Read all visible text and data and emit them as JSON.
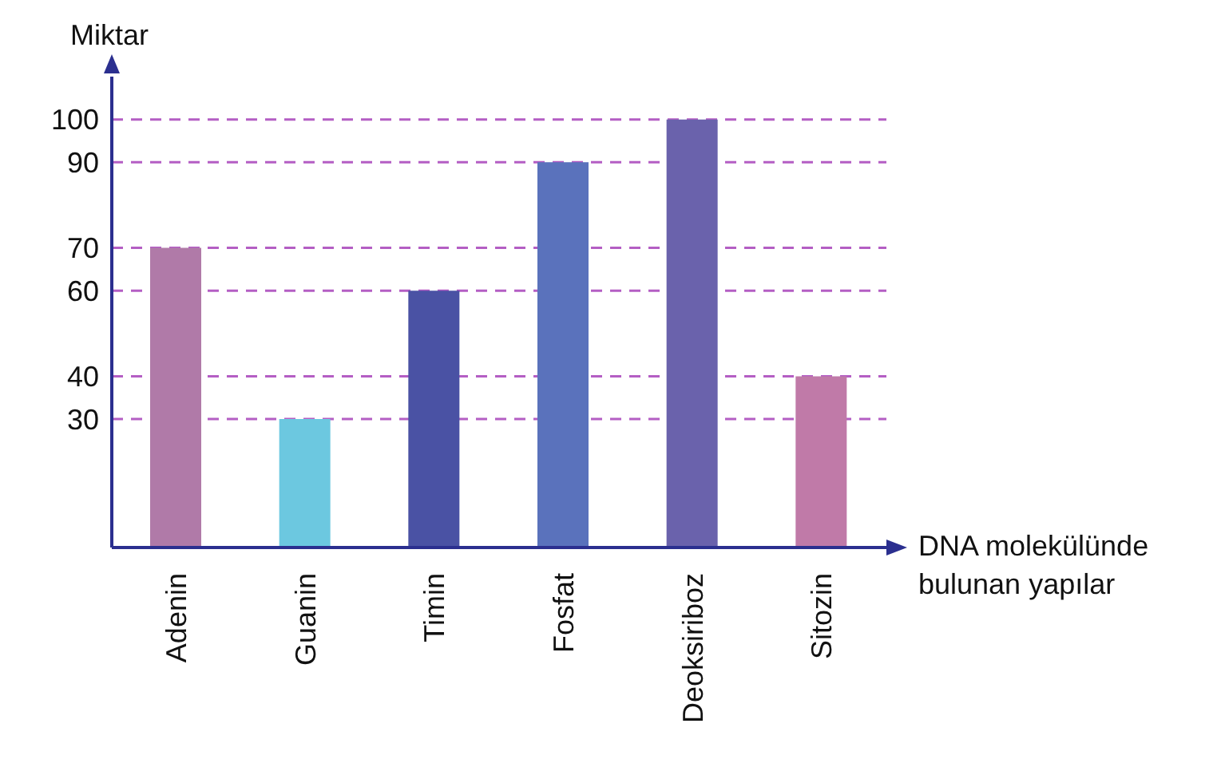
{
  "chart_data": {
    "type": "bar",
    "xlabel": "DNA molekülünde bulunan yapılar",
    "ylabel": "Miktar",
    "categories": [
      "Adenin",
      "Guanin",
      "Timin",
      "Fosfat",
      "Deoksiriboz",
      "Sitozin"
    ],
    "values": [
      70,
      30,
      60,
      90,
      100,
      40
    ],
    "colors": [
      "#b07aa8",
      "#6cc8e0",
      "#4a52a4",
      "#5a72bc",
      "#6a62ac",
      "#c07aa8"
    ],
    "ylim": [
      0,
      110
    ],
    "yticks": [
      30,
      40,
      60,
      70,
      90,
      100
    ],
    "grid": "y"
  }
}
